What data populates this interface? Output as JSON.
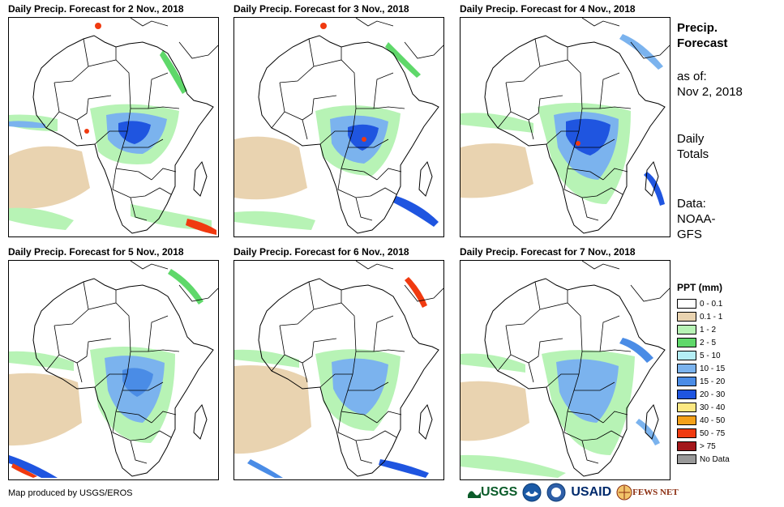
{
  "panels": [
    {
      "title": "Daily Precip. Forecast for 2 Nov., 2018"
    },
    {
      "title": "Daily Precip. Forecast for 3 Nov., 2018"
    },
    {
      "title": "Daily Precip. Forecast for 4 Nov., 2018"
    },
    {
      "title": "Daily Precip. Forecast for 5 Nov., 2018"
    },
    {
      "title": "Daily Precip. Forecast for 6 Nov., 2018"
    },
    {
      "title": "Daily Precip. Forecast for 7 Nov., 2018"
    }
  ],
  "sidebar": {
    "title_line1": "Precip.",
    "title_line2": "Forecast",
    "asof_line1": "as of:",
    "asof_line2": "Nov 2, 2018",
    "daily_line1": "Daily",
    "daily_line2": "Totals",
    "data_line1": "Data:",
    "data_line2": "NOAA-",
    "data_line3": "GFS"
  },
  "legend": {
    "title": "PPT (mm)",
    "items": [
      {
        "label": "0 - 0.1",
        "color": "#ffffff"
      },
      {
        "label": "0.1 - 1",
        "color": "#e9d3b0"
      },
      {
        "label": "1 - 2",
        "color": "#b7f3b5"
      },
      {
        "label": "2 - 5",
        "color": "#5fd86a"
      },
      {
        "label": "5 - 10",
        "color": "#b4eef5"
      },
      {
        "label": "10 - 15",
        "color": "#7bb3ee"
      },
      {
        "label": "15 - 20",
        "color": "#4a8ce6"
      },
      {
        "label": "20 - 30",
        "color": "#1f55e0"
      },
      {
        "label": "30 - 40",
        "color": "#fce882"
      },
      {
        "label": "40 - 50",
        "color": "#f4a11a"
      },
      {
        "label": "50 - 75",
        "color": "#f03a10"
      },
      {
        "label": "> 75",
        "color": "#a3171b"
      },
      {
        "label": "No Data",
        "color": "#999999"
      }
    ]
  },
  "footer": {
    "credit": "Map produced by USGS/EROS",
    "usgs": "USGS",
    "usaid": "USAID",
    "fews": "FEWS NET"
  },
  "colors": {
    "sand": "#e9d3b0",
    "light_green": "#b7f3b5",
    "green": "#5fd86a",
    "light_blue": "#7bb3ee",
    "blue": "#1f55e0",
    "red": "#f03a10",
    "border": "#000000"
  }
}
